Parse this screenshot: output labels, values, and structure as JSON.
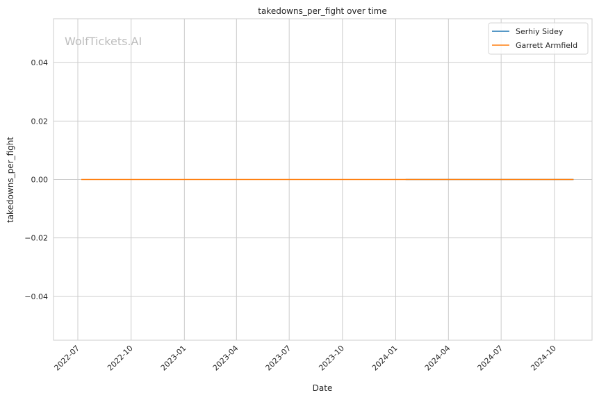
{
  "watermark": "WolfTickets.AI",
  "chart_data": {
    "type": "line",
    "title": "takedowns_per_fight over time",
    "xlabel": "Date",
    "ylabel": "takedowns_per_fight",
    "xlim": [
      "2022-05-20",
      "2024-12-05"
    ],
    "ylim": [
      -0.055,
      0.055
    ],
    "grid": true,
    "legend_position": "top-right",
    "x_ticks": [
      "2022-07",
      "2022-10",
      "2023-01",
      "2023-04",
      "2023-07",
      "2023-10",
      "2024-01",
      "2024-04",
      "2024-07",
      "2024-10"
    ],
    "y_ticks": [
      0.04,
      0.02,
      0.0,
      -0.02,
      -0.04
    ],
    "y_tick_labels": [
      "0.04",
      "0.02",
      "0.00",
      "−0.02",
      "−0.04"
    ],
    "series": [
      {
        "name": "Serhiy Sidey",
        "color": "#1f77b4",
        "x": [
          "2024-01-18",
          "2024-11-03"
        ],
        "y": [
          0,
          0
        ]
      },
      {
        "name": "Garrett Armfield",
        "color": "#ff7f0e",
        "x": [
          "2022-07-07",
          "2024-11-03"
        ],
        "y": [
          0,
          0
        ]
      }
    ]
  }
}
